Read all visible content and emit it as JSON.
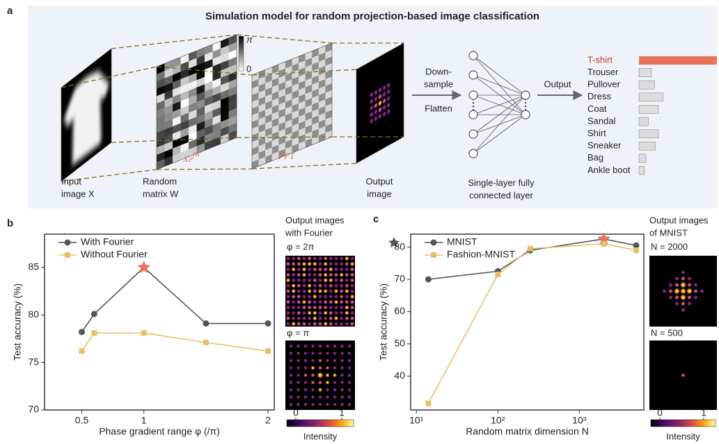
{
  "panel_labels": [
    "a",
    "b",
    "c"
  ],
  "diagram": {
    "title": "Simulation model for random projection-based image classification",
    "input_label": [
      "Input",
      "image X"
    ],
    "random_label": [
      "Random",
      "matrix W"
    ],
    "output_label": [
      "Output",
      "image"
    ],
    "colorbar_labels": [
      "π",
      "0"
    ],
    "operation_1": {
      "base": "Xe",
      "sup": "jW"
    },
    "operation_2": "FFT",
    "downsample": [
      "Down-",
      "sample"
    ],
    "flatten": "Flatten",
    "output_arrow": "Output",
    "layer_label": [
      "Single-layer fully",
      "connected layer"
    ],
    "classes": [
      "T-shirt",
      "Trouser",
      "Pullover",
      "Dress",
      "Coat",
      "Sandal",
      "Shirt",
      "Sneaker",
      "Bag",
      "Ankle boot"
    ],
    "scores": [
      1,
      0.16,
      0.2,
      0.31,
      0.25,
      0.12,
      0.25,
      0.21,
      0.09,
      0.07
    ],
    "top_color": "#c0392b",
    "top_bar_color": "#e8735a",
    "bar_color": "#dcdcdc"
  },
  "chart_data": [
    {
      "type": "line",
      "x_label": "Phase gradient range φ (/π)",
      "y_label": "Test accuracy (%)",
      "x": [
        0.5,
        0.6,
        1,
        1.5,
        2
      ],
      "xlim": [
        0.2,
        2.05
      ],
      "xticks": [
        0.5,
        1,
        2
      ],
      "ylim": [
        70,
        88.5
      ],
      "yticks": [
        70,
        75,
        80,
        85
      ],
      "legend": "upper left",
      "series": [
        {
          "name": "With Fourier",
          "color": "#555555",
          "marker": "circle",
          "values": [
            78.2,
            80.1,
            85,
            79.1,
            79.1
          ],
          "star_index": 2
        },
        {
          "name": "Without Fourier",
          "color": "#e6c068",
          "marker": "square",
          "values": [
            76.2,
            78.1,
            78.1,
            77.1,
            76.2
          ]
        }
      ],
      "star_color": "#e8735a"
    },
    {
      "type": "line",
      "x_label": "Random matrix dimension N",
      "y_label": "Test accuracy (%)",
      "x": [
        14,
        100,
        250,
        2000,
        5000
      ],
      "xscale": "log",
      "xlim": [
        8.5,
        6200
      ],
      "xticks": [
        {
          "value": 10,
          "label": "10¹"
        },
        {
          "value": 100,
          "label": "10²"
        },
        {
          "value": 1000,
          "label": "10³"
        }
      ],
      "ylim": [
        29.5,
        84
      ],
      "yticks": [
        40,
        50,
        60,
        70,
        80
      ],
      "legend": "upper left",
      "series": [
        {
          "name": "MNIST",
          "color": "#555555",
          "marker": "circle",
          "values": [
            70,
            72.5,
            79,
            82.5,
            80.5
          ],
          "star_index": 3
        },
        {
          "name": "Fashion-MNIST",
          "color": "#e6c068",
          "marker": "square",
          "values": [
            31.5,
            71.5,
            79.5,
            81,
            79
          ]
        }
      ],
      "star_color": "#e8735a"
    }
  ],
  "insets": [
    {
      "title": [
        "Output  images",
        "with Fourier"
      ],
      "image_labels": [
        "φ = 2π",
        "φ = π"
      ],
      "colorbar_ticks": [
        0,
        1
      ],
      "colorbar_label": "Intensity"
    },
    {
      "title": [
        "Output  images",
        "of MNIST"
      ],
      "image_labels": [
        "N = 2000",
        "N = 500"
      ],
      "colorbar_ticks": [
        0,
        1
      ],
      "colorbar_label": "Intensity"
    }
  ]
}
